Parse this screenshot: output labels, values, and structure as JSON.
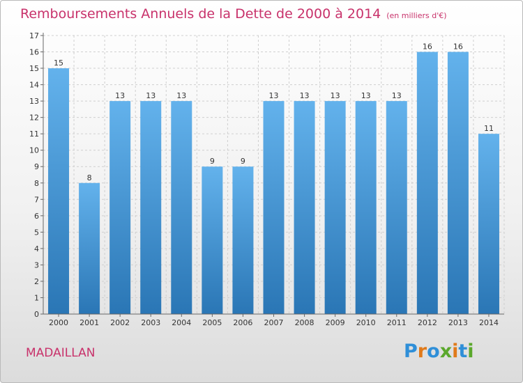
{
  "header": {
    "title": "Remboursements Annuels de la Dette de 2000 à 2014",
    "subtitle": "(en milliers d'€)"
  },
  "footer": {
    "town": "MADAILLAN",
    "logo": {
      "letters": [
        "P",
        "r",
        "o",
        "x",
        "i",
        "t",
        "i"
      ],
      "colors": [
        "#2f8fd8",
        "#e07a1a",
        "#2f8fd8",
        "#5ba82c",
        "#e07a1a",
        "#2f8fd8",
        "#5ba82c"
      ]
    }
  },
  "colors": {
    "bar_top": "#63b2ec",
    "bar_bottom": "#2a76b5",
    "grid": "#cfcfcf",
    "title": "#c8326b"
  },
  "chart_data": {
    "type": "bar",
    "categories": [
      "2000",
      "2001",
      "2002",
      "2003",
      "2004",
      "2005",
      "2006",
      "2007",
      "2008",
      "2009",
      "2010",
      "2011",
      "2012",
      "2013",
      "2014"
    ],
    "values": [
      15,
      8,
      13,
      13,
      13,
      9,
      9,
      13,
      13,
      13,
      13,
      13,
      16,
      16,
      11
    ],
    "yticks": [
      0,
      1,
      2,
      3,
      4,
      5,
      6,
      7,
      8,
      9,
      10,
      11,
      12,
      13,
      14,
      15,
      16,
      17
    ],
    "ylim": [
      0,
      17
    ],
    "grid": true,
    "xlabel": "",
    "ylabel": ""
  }
}
